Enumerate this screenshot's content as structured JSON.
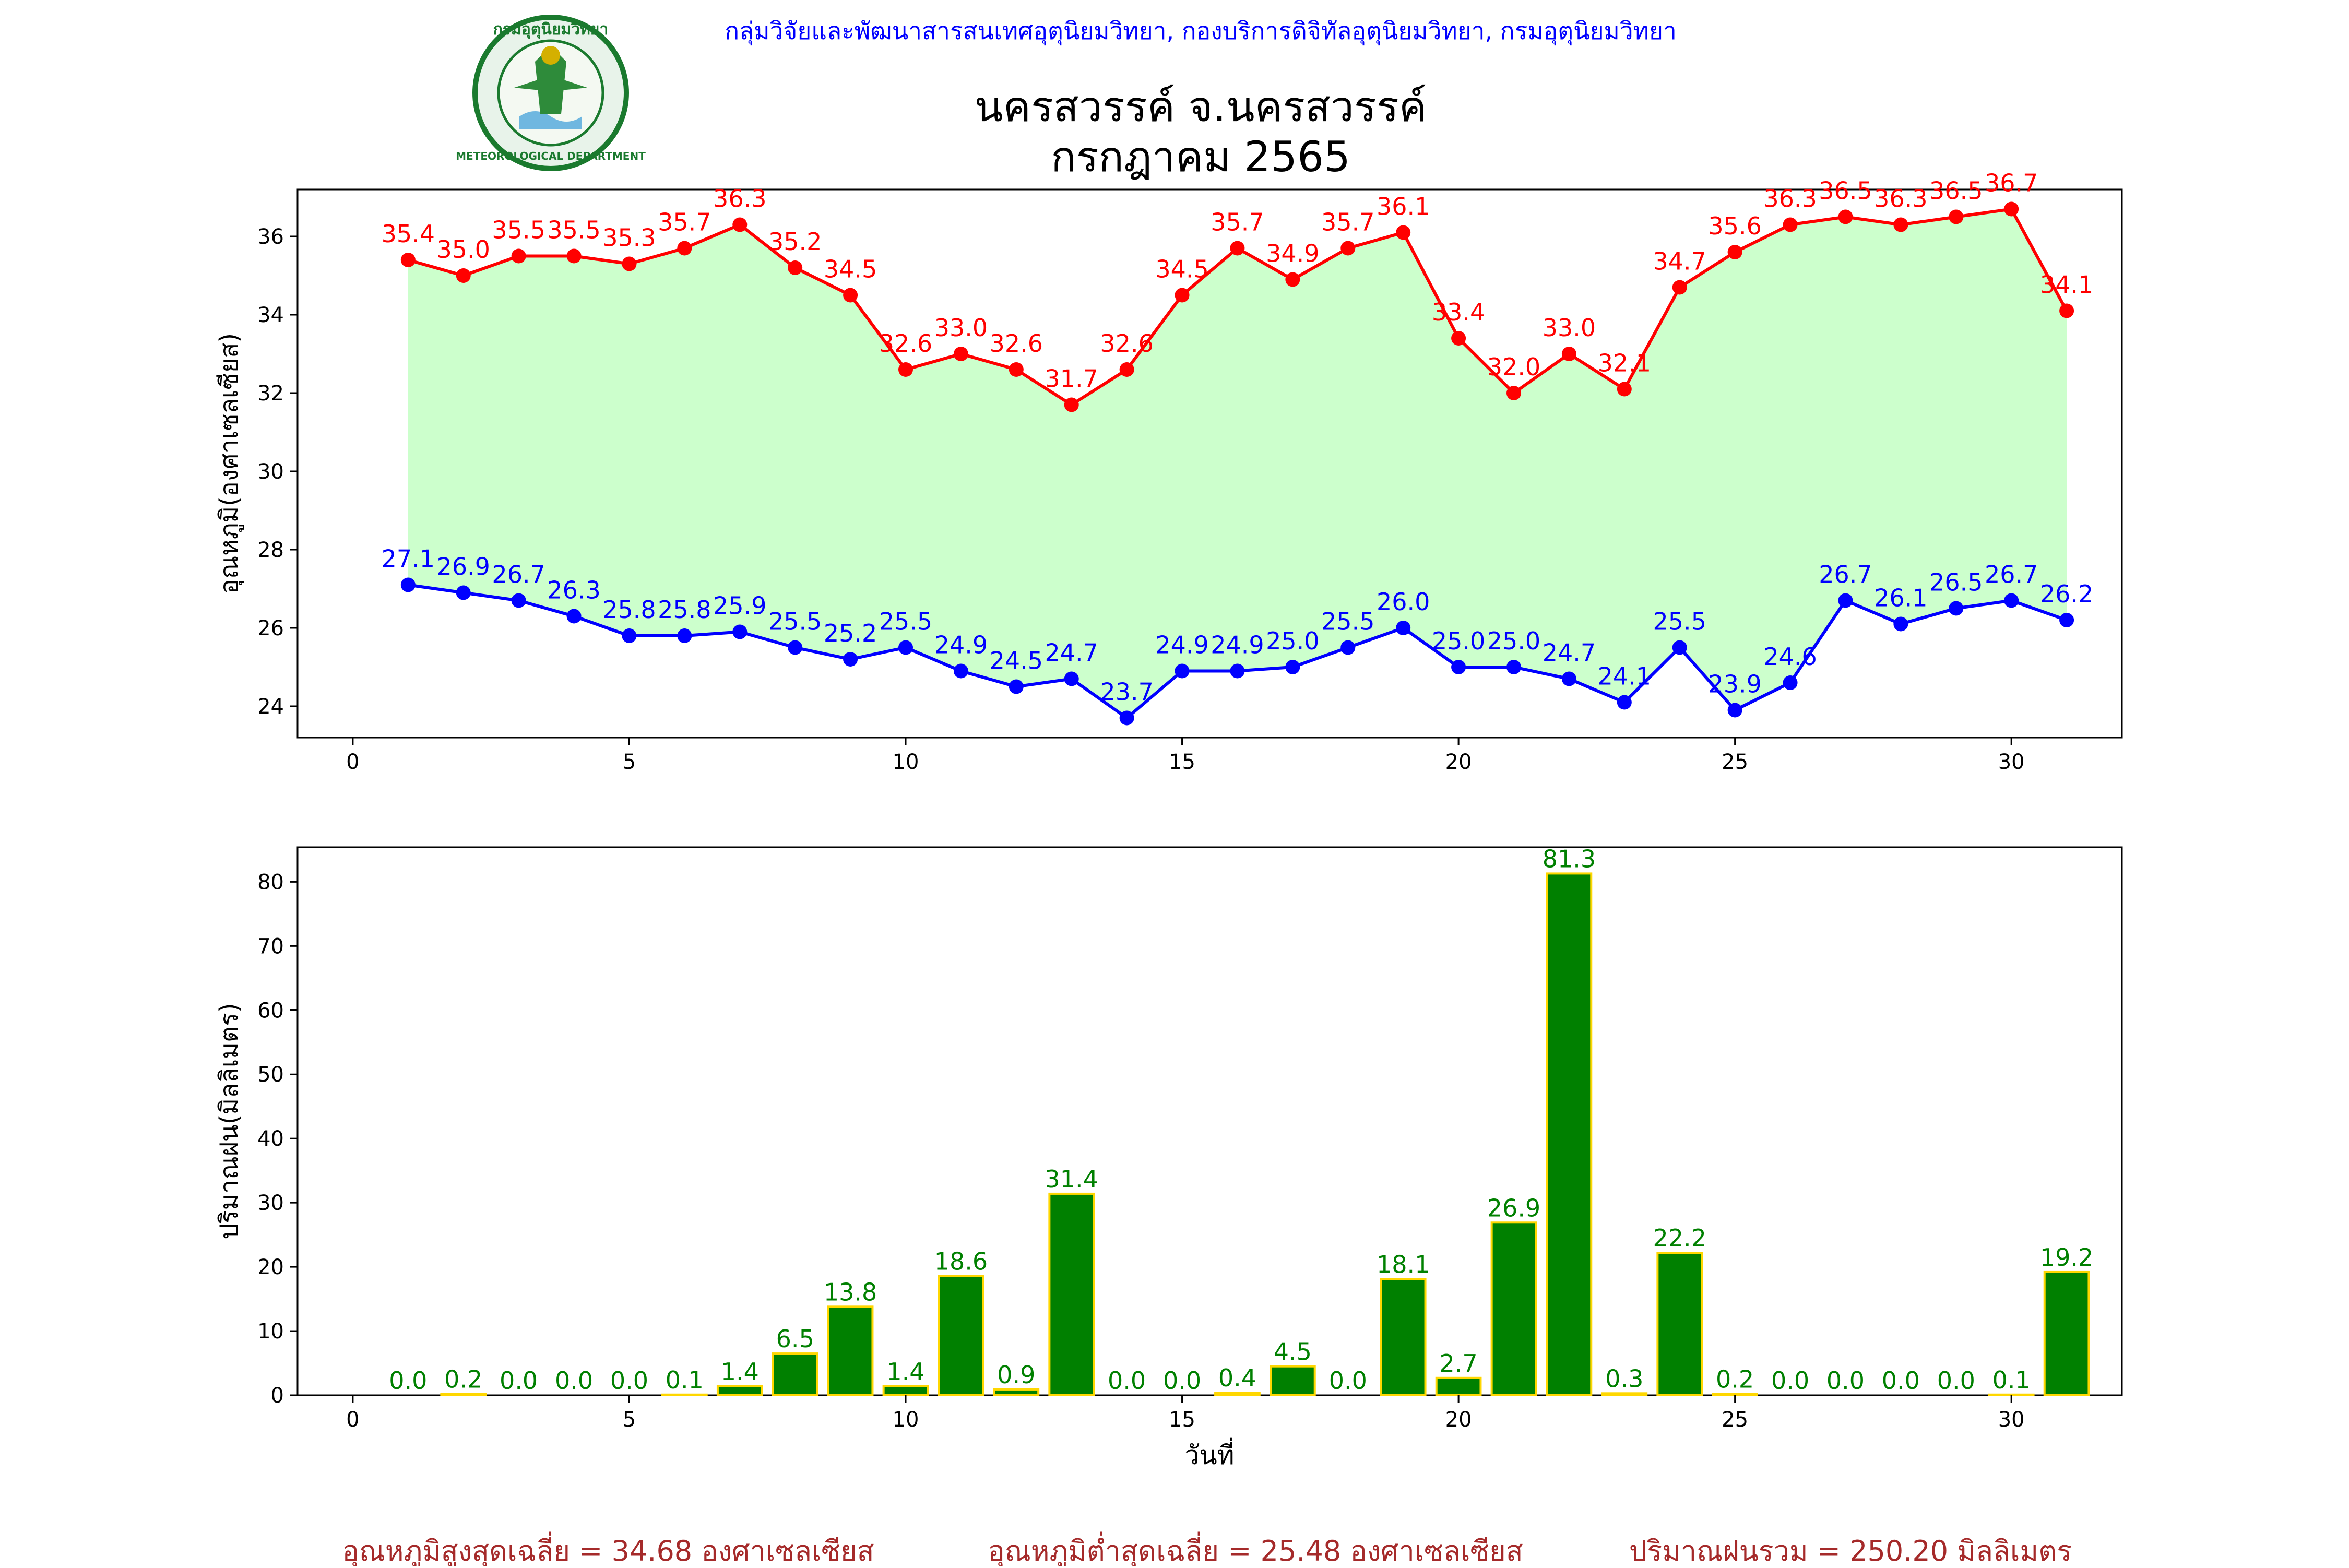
{
  "header": {
    "org_line": "กลุ่มวิจัยและพัฒนาสารสนเทศอุตุนิยมวิทยา, กองบริการดิจิทัลอุตุนิยมวิทยา, กรมอุตุนิยมวิทยา",
    "title_line1": "นครสวรรค์  จ.นครสวรรค์",
    "title_line2": "กรกฎาคม 2565",
    "logo_text_top": "กรมอุตุนิยมวิทยา",
    "logo_text_bottom": "METEOROLOGICAL DEPARTMENT"
  },
  "colors": {
    "header_text": "#0000ff",
    "max_series": "#ff0000",
    "min_series": "#0000ff",
    "band_fill": "#ccffcc",
    "bar_fill": "#008000",
    "bar_edge": "#ffd700",
    "summary_text": "#a52a2a"
  },
  "chart_data": [
    {
      "type": "line",
      "ylabel": "อุณหภูมิ(องศาเซลเซียส)",
      "xlabel": "",
      "xlim": [
        -1,
        32
      ],
      "ylim": [
        23.2,
        37.2
      ],
      "xticks": [
        0,
        5,
        10,
        15,
        20,
        25,
        30
      ],
      "yticks": [
        24,
        26,
        28,
        30,
        32,
        34,
        36
      ],
      "x": [
        1,
        2,
        3,
        4,
        5,
        6,
        7,
        8,
        9,
        10,
        11,
        12,
        13,
        14,
        15,
        16,
        17,
        18,
        19,
        20,
        21,
        22,
        23,
        24,
        25,
        26,
        27,
        28,
        29,
        30,
        31
      ],
      "series": [
        {
          "key": "max",
          "values": [
            35.4,
            35.0,
            35.5,
            35.5,
            35.3,
            35.7,
            36.3,
            35.2,
            34.5,
            32.6,
            33.0,
            32.6,
            31.7,
            32.6,
            34.5,
            35.7,
            34.9,
            35.7,
            36.1,
            33.4,
            32.0,
            33.0,
            32.1,
            34.7,
            35.6,
            36.3,
            36.5,
            36.3,
            36.5,
            36.7,
            34.1
          ]
        },
        {
          "key": "min",
          "values": [
            27.1,
            26.9,
            26.7,
            26.3,
            25.8,
            25.8,
            25.9,
            25.5,
            25.2,
            25.5,
            24.9,
            24.5,
            24.7,
            23.7,
            24.9,
            24.9,
            25.0,
            25.5,
            26.0,
            25.0,
            25.0,
            24.7,
            24.1,
            25.5,
            23.9,
            24.6,
            26.7,
            26.1,
            26.5,
            26.7,
            26.2
          ]
        }
      ],
      "fill_between": true,
      "grid": false
    },
    {
      "type": "bar",
      "ylabel": "ปริมาณฝน(มิลลิเมตร)",
      "xlabel": "วันที่",
      "xlim": [
        -1,
        32
      ],
      "ylim": [
        0,
        85.4
      ],
      "xticks": [
        0,
        5,
        10,
        15,
        20,
        25,
        30
      ],
      "yticks": [
        0,
        10,
        20,
        30,
        40,
        50,
        60,
        70,
        80
      ],
      "x": [
        1,
        2,
        3,
        4,
        5,
        6,
        7,
        8,
        9,
        10,
        11,
        12,
        13,
        14,
        15,
        16,
        17,
        18,
        19,
        20,
        21,
        22,
        23,
        24,
        25,
        26,
        27,
        28,
        29,
        30,
        31
      ],
      "values": [
        0.0,
        0.2,
        0.0,
        0.0,
        0.0,
        0.1,
        1.4,
        6.5,
        13.8,
        1.4,
        18.6,
        0.9,
        31.4,
        0.0,
        0.0,
        0.4,
        4.5,
        0.0,
        18.1,
        2.7,
        26.9,
        81.3,
        0.3,
        22.2,
        0.2,
        0.0,
        0.0,
        0.0,
        0.0,
        0.1,
        19.2
      ],
      "grid": false
    }
  ],
  "summary": {
    "avg_max": "อุณหภูมิสูงสุดเฉลี่ย = 34.68 องศาเซลเซียส",
    "avg_min": "อุณหภูมิต่ำสุดเฉลี่ย = 25.48 องศาเซลเซียส",
    "total_rain": "ปริมาณฝนรวม = 250.20 มิลลิเมตร"
  }
}
